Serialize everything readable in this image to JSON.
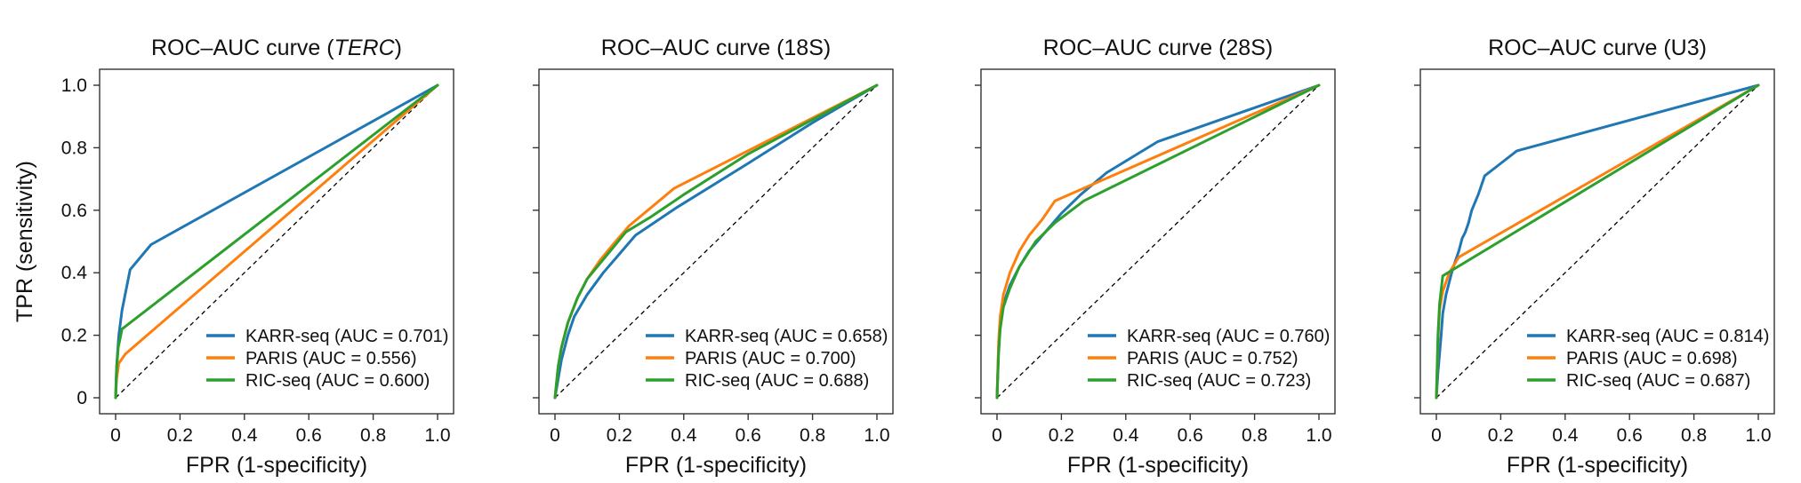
{
  "chart_data": [
    {
      "type": "line",
      "title": "ROC–AUC curve (TERC)",
      "title_main": "ROC–AUC curve (",
      "title_italic": "TERC",
      "title_end": ")",
      "xlabel": "FPR (1-specificity)",
      "ylabel": "TPR (sensitivity)",
      "xlim": [
        0,
        1
      ],
      "ylim": [
        0,
        1
      ],
      "xticks": [
        "0",
        "0.2",
        "0.4",
        "0.6",
        "0.8",
        "1.0"
      ],
      "yticks": [
        "0",
        "0.2",
        "0.4",
        "0.6",
        "0.8",
        "1.0"
      ],
      "legend_position": "bottom-right",
      "series": [
        {
          "name": "KARR-seq (AUC = 0.701)",
          "color": "#1f77b4",
          "x": [
            0,
            0.003,
            0.01,
            0.02,
            0.045,
            0.11,
            1.0
          ],
          "y": [
            0,
            0.1,
            0.2,
            0.28,
            0.41,
            0.49,
            1.0
          ]
        },
        {
          "name": "PARIS (AUC = 0.556)",
          "color": "#ff7f0e",
          "x": [
            0,
            0.003,
            0.01,
            0.03,
            1.0
          ],
          "y": [
            0,
            0.06,
            0.11,
            0.14,
            1.0
          ]
        },
        {
          "name": "RIC-seq (AUC = 0.600)",
          "color": "#2ca02c",
          "x": [
            0,
            0.003,
            0.008,
            0.02,
            1.0
          ],
          "y": [
            0,
            0.09,
            0.16,
            0.22,
            1.0
          ]
        }
      ],
      "diagonal": {
        "style": "dashed",
        "color": "#000000"
      }
    },
    {
      "type": "line",
      "title": "ROC–AUC curve (18S)",
      "title_main": "ROC–AUC curve (18S)",
      "title_italic": "",
      "title_end": "",
      "xlabel": "FPR (1-specificity)",
      "ylabel": "",
      "xlim": [
        0,
        1
      ],
      "ylim": [
        0,
        1
      ],
      "xticks": [
        "0",
        "0.2",
        "0.4",
        "0.6",
        "0.8",
        "1.0"
      ],
      "yticks": [],
      "legend_position": "bottom-right",
      "series": [
        {
          "name": "KARR-seq (AUC = 0.658)",
          "color": "#1f77b4",
          "x": [
            0,
            0.01,
            0.02,
            0.04,
            0.06,
            0.1,
            0.15,
            0.2,
            0.25,
            0.38,
            0.6,
            0.8,
            1.0
          ],
          "y": [
            0,
            0.06,
            0.12,
            0.2,
            0.26,
            0.33,
            0.4,
            0.46,
            0.52,
            0.61,
            0.75,
            0.88,
            1.0
          ]
        },
        {
          "name": "PARIS (AUC = 0.700)",
          "color": "#ff7f0e",
          "x": [
            0,
            0.01,
            0.02,
            0.04,
            0.07,
            0.1,
            0.14,
            0.18,
            0.23,
            0.37,
            1.0
          ],
          "y": [
            0,
            0.1,
            0.16,
            0.24,
            0.32,
            0.38,
            0.44,
            0.49,
            0.55,
            0.67,
            1.0
          ]
        },
        {
          "name": "RIC-seq (AUC = 0.688)",
          "color": "#2ca02c",
          "x": [
            0,
            0.01,
            0.02,
            0.04,
            0.07,
            0.1,
            0.14,
            0.18,
            0.22,
            0.3,
            0.4,
            0.6,
            0.8,
            1.0
          ],
          "y": [
            0,
            0.1,
            0.16,
            0.24,
            0.32,
            0.38,
            0.43,
            0.48,
            0.53,
            0.58,
            0.65,
            0.78,
            0.89,
            1.0
          ]
        }
      ],
      "diagonal": {
        "style": "dashed",
        "color": "#000000"
      }
    },
    {
      "type": "line",
      "title": "ROC–AUC curve (28S)",
      "title_main": "ROC–AUC curve (28S)",
      "title_italic": "",
      "title_end": "",
      "xlabel": "FPR (1-specificity)",
      "ylabel": "",
      "xlim": [
        0,
        1
      ],
      "ylim": [
        0,
        1
      ],
      "xticks": [
        "0",
        "0.2",
        "0.4",
        "0.6",
        "0.8",
        "1.0"
      ],
      "yticks": [],
      "legend_position": "bottom-right",
      "series": [
        {
          "name": "KARR-seq (AUC = 0.760)",
          "color": "#1f77b4",
          "x": [
            0,
            0.005,
            0.01,
            0.02,
            0.04,
            0.07,
            0.1,
            0.15,
            0.2,
            0.26,
            0.34,
            0.42,
            0.5,
            1.0
          ],
          "y": [
            0,
            0.16,
            0.24,
            0.3,
            0.36,
            0.42,
            0.47,
            0.53,
            0.59,
            0.65,
            0.72,
            0.77,
            0.82,
            1.0
          ]
        },
        {
          "name": "PARIS (AUC = 0.752)",
          "color": "#ff7f0e",
          "x": [
            0,
            0.005,
            0.01,
            0.02,
            0.04,
            0.07,
            0.1,
            0.14,
            0.18,
            1.0
          ],
          "y": [
            0,
            0.18,
            0.26,
            0.33,
            0.4,
            0.47,
            0.52,
            0.57,
            0.63,
            1.0
          ]
        },
        {
          "name": "RIC-seq (AUC = 0.723)",
          "color": "#2ca02c",
          "x": [
            0,
            0.005,
            0.01,
            0.02,
            0.04,
            0.07,
            0.12,
            0.18,
            0.27,
            1.0
          ],
          "y": [
            0,
            0.14,
            0.22,
            0.29,
            0.35,
            0.42,
            0.5,
            0.56,
            0.63,
            1.0
          ]
        }
      ],
      "diagonal": {
        "style": "dashed",
        "color": "#000000"
      }
    },
    {
      "type": "line",
      "title": "ROC–AUC curve (U3)",
      "title_main": "ROC–AUC curve (U3)",
      "title_italic": "",
      "title_end": "",
      "xlabel": "FPR (1-specificity)",
      "ylabel": "",
      "xlim": [
        0,
        1
      ],
      "ylim": [
        0,
        1
      ],
      "xticks": [
        "0",
        "0.2",
        "0.4",
        "0.6",
        "0.8",
        "1.0"
      ],
      "yticks": [],
      "legend_position": "bottom-right",
      "series": [
        {
          "name": "KARR-seq (AUC = 0.814)",
          "color": "#1f77b4",
          "x": [
            0,
            0.005,
            0.01,
            0.015,
            0.02,
            0.03,
            0.04,
            0.05,
            0.06,
            0.07,
            0.08,
            0.09,
            0.1,
            0.11,
            0.13,
            0.15,
            0.2,
            0.25,
            1.0
          ],
          "y": [
            0,
            0.08,
            0.14,
            0.2,
            0.27,
            0.33,
            0.37,
            0.41,
            0.44,
            0.47,
            0.51,
            0.53,
            0.56,
            0.6,
            0.65,
            0.71,
            0.75,
            0.79,
            1.0
          ]
        },
        {
          "name": "PARIS (AUC = 0.698)",
          "color": "#ff7f0e",
          "x": [
            0,
            0.005,
            0.01,
            0.02,
            0.04,
            0.07,
            1.0
          ],
          "y": [
            0,
            0.18,
            0.28,
            0.34,
            0.4,
            0.45,
            1.0
          ]
        },
        {
          "name": "RIC-seq (AUC = 0.687)",
          "color": "#2ca02c",
          "x": [
            0,
            0.005,
            0.01,
            0.02,
            1.0
          ],
          "y": [
            0,
            0.2,
            0.3,
            0.39,
            1.0
          ]
        }
      ],
      "diagonal": {
        "style": "dashed",
        "color": "#000000"
      }
    }
  ]
}
